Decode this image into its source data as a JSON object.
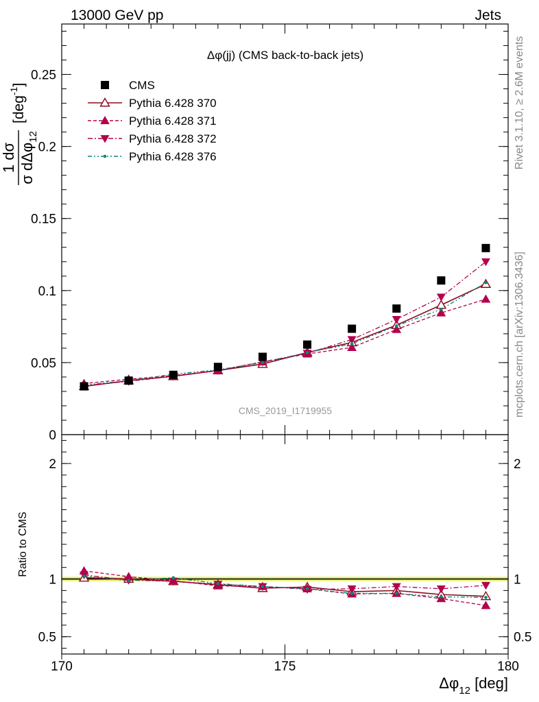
{
  "header": {
    "left": "13000 GeV pp",
    "right": "Jets"
  },
  "side_labels": {
    "rivet": "Rivet 3.1.10, ≥ 2.6M events",
    "mcplots": "mcplots.cern.ch [arXiv:1306.3436]"
  },
  "chart_data": [
    {
      "type": "line",
      "title": "Δφ(jj) (CMS back-to-back jets)",
      "watermark": "CMS_2019_I1719955",
      "ylabel": {
        "numerator": "1  dσ",
        "denominator": "σ dΔφ",
        "denominator_sub": "12",
        "unit": "[deg",
        "unit_sup": "-1",
        "unit_close": "]"
      },
      "xlim": [
        170,
        180
      ],
      "ylim": [
        0,
        0.285
      ],
      "yticks": [
        0,
        0.05,
        0.1,
        0.15,
        0.2,
        0.25
      ],
      "ytick_labels": [
        "0",
        "0.05",
        "0.1",
        "0.15",
        "0.2",
        "0.25"
      ],
      "legend_position": "top-left",
      "x": [
        170.5,
        171.5,
        172.5,
        173.5,
        174.5,
        175.5,
        176.5,
        177.5,
        178.5,
        179.5
      ],
      "series": [
        {
          "name": "CMS",
          "marker": "square",
          "color": "#000000",
          "line": "none",
          "values": [
            0.0335,
            0.0375,
            0.0415,
            0.047,
            0.054,
            0.0625,
            0.0735,
            0.0875,
            0.107,
            0.1295
          ]
        },
        {
          "name": "Pythia 6.428 370",
          "marker": "triangle-up-open",
          "color": "#8b0a1a",
          "line": "solid",
          "values": [
            0.0335,
            0.0375,
            0.0405,
            0.0445,
            0.049,
            0.057,
            0.064,
            0.076,
            0.09,
            0.1045
          ]
        },
        {
          "name": "Pythia 6.428 371",
          "marker": "triangle-up",
          "color": "#b3004c",
          "line": "dashed",
          "values": [
            0.0355,
            0.0385,
            0.041,
            0.0445,
            0.0505,
            0.056,
            0.0605,
            0.073,
            0.0845,
            0.094
          ]
        },
        {
          "name": "Pythia 6.428 372",
          "marker": "triangle-down",
          "color": "#b3004c",
          "line": "dashdot",
          "values": [
            0.034,
            0.037,
            0.0405,
            0.0445,
            0.0505,
            0.0565,
            0.066,
            0.08,
            0.0955,
            0.12
          ]
        },
        {
          "name": "Pythia 6.428 376",
          "marker": "dot",
          "color": "#00897b",
          "line": "dashdotdot",
          "values": [
            0.0345,
            0.0375,
            0.042,
            0.045,
            0.05,
            0.057,
            0.063,
            0.0755,
            0.087,
            0.1055
          ]
        }
      ]
    },
    {
      "type": "line",
      "ylabel": "Ratio to CMS",
      "xlabel": {
        "main": "Δφ",
        "sub": "12",
        "unit": " [deg]"
      },
      "xlim": [
        170,
        180
      ],
      "ylim": [
        0.35,
        2.25
      ],
      "xticks": [
        170,
        175,
        180
      ],
      "xtick_labels": [
        "170",
        "175",
        "180"
      ],
      "yticks": [
        0.5,
        1,
        2
      ],
      "ytick_labels": [
        "0.5",
        "1",
        "2"
      ],
      "band": {
        "low": 0.98,
        "high": 1.02,
        "color": "#e8f37a"
      },
      "x": [
        170.5,
        171.5,
        172.5,
        173.5,
        174.5,
        175.5,
        176.5,
        177.5,
        178.5,
        179.5
      ],
      "series": [
        {
          "name": "Pythia 6.428 370",
          "values": [
            1.01,
            1.0,
            0.98,
            0.95,
            0.92,
            0.93,
            0.89,
            0.9,
            0.865,
            0.85
          ]
        },
        {
          "name": "Pythia 6.428 371",
          "values": [
            1.07,
            1.02,
            0.985,
            0.94,
            0.935,
            0.915,
            0.87,
            0.875,
            0.83,
            0.77
          ]
        },
        {
          "name": "Pythia 6.428 372",
          "values": [
            1.035,
            0.99,
            0.98,
            0.955,
            0.935,
            0.91,
            0.915,
            0.935,
            0.915,
            0.945
          ]
        },
        {
          "name": "Pythia 6.428 376",
          "values": [
            1.025,
            0.985,
            1.01,
            0.96,
            0.935,
            0.915,
            0.875,
            0.875,
            0.845,
            0.84
          ]
        }
      ]
    }
  ]
}
